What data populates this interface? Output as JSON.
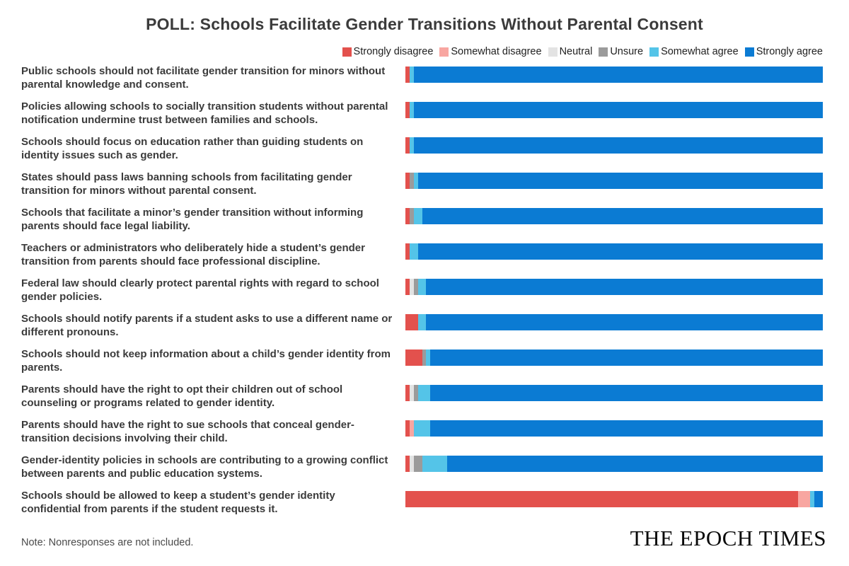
{
  "page": {
    "background": "#ffffff"
  },
  "header": {
    "title": "POLL: Schools Facilitate Gender Transitions Without Parental Consent"
  },
  "footer": {
    "note": "Note: Nonresponses are not included.",
    "logo": "THE EPOCH TIMES"
  },
  "chart_data": {
    "type": "bar",
    "orientation": "horizontal",
    "stacked": true,
    "unit": "percent",
    "xlim": [
      0,
      100
    ],
    "axes_hidden": true,
    "grid": false,
    "legend_position": "top-right",
    "title": "POLL: Schools Facilitate Gender Transitions Without Parental Consent",
    "series_labels": [
      "Strongly disagree",
      "Somewhat disagree",
      "Neutral",
      "Unsure",
      "Somewhat agree",
      "Strongly agree"
    ],
    "series_colors": [
      "#e3514d",
      "#f8a6a1",
      "#e3e3e3",
      "#9b9b9b",
      "#54c4e8",
      "#0b7bd3"
    ],
    "rows": [
      {
        "statement": "Public schools should not facilitate gender transition for minors without parental knowledge and consent.",
        "values": [
          1,
          0,
          0,
          0,
          1,
          98
        ]
      },
      {
        "statement": "Policies allowing schools to socially transition students without parental notification undermine trust between families and schools.",
        "values": [
          1,
          0,
          0,
          0,
          1,
          98
        ]
      },
      {
        "statement": "Schools should focus on education rather than guiding students on identity issues such as gender.",
        "values": [
          1,
          0,
          0,
          0,
          1,
          98
        ]
      },
      {
        "statement": "States should pass laws banning schools from facilitating gender transition for minors without parental consent.",
        "values": [
          1,
          0,
          0,
          1,
          1,
          97
        ]
      },
      {
        "statement": "Schools that facilitate a minor’s gender transition without informing parents should face legal liability.",
        "values": [
          1,
          0,
          0,
          1,
          2,
          96
        ]
      },
      {
        "statement": "Teachers or administrators who deliberately hide a student’s gender transition from parents should face professional discipline.",
        "values": [
          1,
          0,
          0,
          0,
          2,
          97
        ]
      },
      {
        "statement": "Federal law should clearly protect parental rights with regard to school gender policies.",
        "values": [
          1,
          0,
          1,
          1,
          2,
          95
        ]
      },
      {
        "statement": "Schools should notify parents if a student asks to use a different name or different pronouns.",
        "values": [
          3,
          0,
          0,
          0,
          2,
          95
        ]
      },
      {
        "statement": "Schools should not keep information about a child’s gender identity from parents.",
        "values": [
          4,
          0,
          0,
          1,
          1,
          94
        ]
      },
      {
        "statement": "Parents should have the right to opt their children out of school counseling or programs related to gender identity.",
        "values": [
          1,
          0,
          1,
          1,
          3,
          94
        ]
      },
      {
        "statement": "Parents should have the right to sue schools that conceal gender-transition decisions involving their child.",
        "values": [
          1,
          1,
          0,
          0,
          4,
          94
        ]
      },
      {
        "statement": "Gender-identity policies in schools are contributing to a growing conflict between parents and public education systems.",
        "values": [
          1,
          0,
          1,
          2,
          6,
          90
        ]
      },
      {
        "statement": "Schools should be allowed to keep a student’s gender identity confidential from parents if the student requests it.",
        "values": [
          94,
          3,
          0,
          0,
          1,
          2
        ]
      }
    ]
  }
}
